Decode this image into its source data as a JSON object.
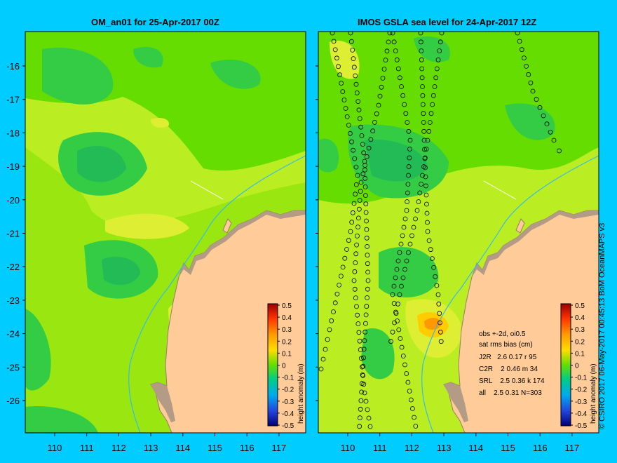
{
  "left_panel": {
    "title": "OM_an01 for 25-Apr-2017 00Z",
    "colorbar_label": "height anomaly (m)"
  },
  "right_panel": {
    "title": "IMOS GSLA sea level  for 24-Apr-2017 12Z",
    "colorbar_label": "height anomaly (m)",
    "stats": [
      "obs +-2d, oi0.5",
      "sat rms bias (cm)",
      "J2R   2.6 0.17 r 95",
      "C2R    2 0.46 m 34",
      "SRL    2.5 0.36 k 174",
      "all    2.5 0.31 N=303"
    ]
  },
  "credit": "© CSIRO 2017   06-May-2017 00:45:13 BoM OceanMAPS v3",
  "y_ticks": [
    "-16",
    "-17",
    "-18",
    "-19",
    "-20",
    "-21",
    "-22",
    "-23",
    "-24",
    "-25",
    "-26"
  ],
  "x_ticks": [
    "110",
    "111",
    "112",
    "113",
    "114",
    "115",
    "116",
    "117"
  ],
  "colorbar_ticks": [
    "0.5",
    "0.4",
    "0.3",
    "0.2",
    "0.1",
    "0",
    "-0.1",
    "-0.2",
    "-0.3",
    "-0.4",
    "-0.5"
  ],
  "colors": {
    "background": "#00ccff",
    "land": "#ffcc99",
    "coast": "#b39b86",
    "field_base": "#66dd00",
    "positive_anomaly": "#ccee22",
    "negative_anomaly": "#22bb55",
    "isobath": "#33bbee",
    "track_marker": "#000000"
  },
  "map": {
    "lon_range": [
      109.2,
      117.9
    ],
    "lat_range": [
      -26.9,
      -15.2
    ]
  }
}
